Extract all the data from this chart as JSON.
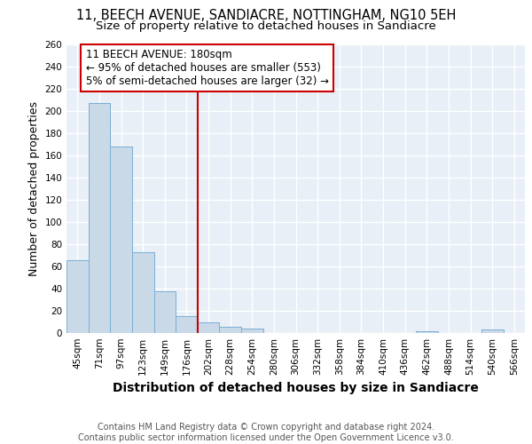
{
  "title_line1": "11, BEECH AVENUE, SANDIACRE, NOTTINGHAM, NG10 5EH",
  "title_line2": "Size of property relative to detached houses in Sandiacre",
  "xlabel": "Distribution of detached houses by size in Sandiacre",
  "ylabel": "Number of detached properties",
  "categories": [
    "45sqm",
    "71sqm",
    "97sqm",
    "123sqm",
    "149sqm",
    "176sqm",
    "202sqm",
    "228sqm",
    "254sqm",
    "280sqm",
    "306sqm",
    "332sqm",
    "358sqm",
    "384sqm",
    "410sqm",
    "436sqm",
    "462sqm",
    "488sqm",
    "514sqm",
    "540sqm",
    "566sqm"
  ],
  "values": [
    66,
    207,
    168,
    73,
    38,
    15,
    10,
    6,
    4,
    0,
    0,
    0,
    0,
    0,
    0,
    0,
    2,
    0,
    0,
    3,
    0
  ],
  "bar_color": "#c9d9e8",
  "bar_edge_color": "#7bafd4",
  "vline_index": 5.5,
  "vline_color": "#cc0000",
  "annotation_text": "11 BEECH AVENUE: 180sqm\n← 95% of detached houses are smaller (553)\n5% of semi-detached houses are larger (32) →",
  "annotation_box_facecolor": "#ffffff",
  "annotation_box_edgecolor": "#cc0000",
  "ylim": [
    0,
    260
  ],
  "yticks": [
    0,
    20,
    40,
    60,
    80,
    100,
    120,
    140,
    160,
    180,
    200,
    220,
    240,
    260
  ],
  "footnote": "Contains HM Land Registry data © Crown copyright and database right 2024.\nContains public sector information licensed under the Open Government Licence v3.0.",
  "bg_color": "#e8eff7",
  "grid_color": "#ffffff",
  "title_fontsize": 10.5,
  "subtitle_fontsize": 9.5,
  "xlabel_fontsize": 10,
  "ylabel_fontsize": 9,
  "tick_fontsize": 7.5,
  "annot_fontsize": 8.5,
  "footnote_fontsize": 7
}
